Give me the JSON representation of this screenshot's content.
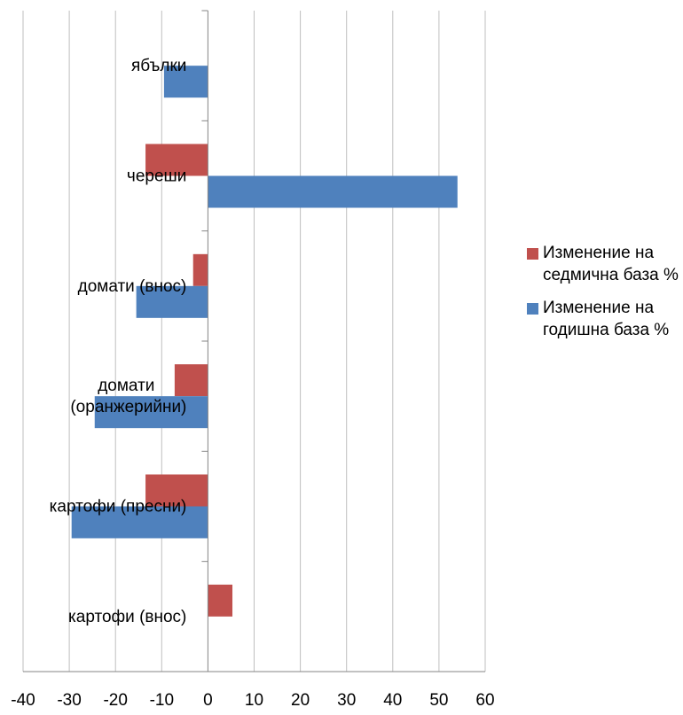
{
  "chart_data": {
    "type": "bar",
    "orientation": "horizontal",
    "categories": [
      "ябълки",
      "череши",
      "домати (внос)",
      "домати (оранжерийни)",
      "картофи (пресни)",
      "картофи (внос)"
    ],
    "category_label_lines": [
      [
        "ябълки"
      ],
      [
        "череши"
      ],
      [
        "домати (внос)"
      ],
      [
        "домати",
        "(оранжерийни)"
      ],
      [
        "картофи (пресни)"
      ],
      [
        "картофи (внос)"
      ]
    ],
    "series": [
      {
        "name": "Изменение на седмична база %",
        "color": "#C0504D",
        "values": [
          null,
          -13.5,
          -3.2,
          -7.2,
          -13.5,
          5.3
        ]
      },
      {
        "name": "Изменение на годишна база %",
        "color": "#4F81BD",
        "values": [
          -9.5,
          54,
          -15.5,
          -24.5,
          -29.5,
          null
        ]
      }
    ],
    "xlim": [
      -40,
      60
    ],
    "xticks": [
      "-40",
      "-30",
      "-20",
      "-10",
      "0",
      "10",
      "20",
      "30",
      "40",
      "50",
      "60"
    ],
    "grid": true,
    "legend_position": "right"
  },
  "legend": {
    "items": [
      {
        "label": "Изменение на седмична база %",
        "color": "#C0504D"
      },
      {
        "label": "Изменение на годишна база %",
        "color": "#4F81BD"
      }
    ]
  }
}
